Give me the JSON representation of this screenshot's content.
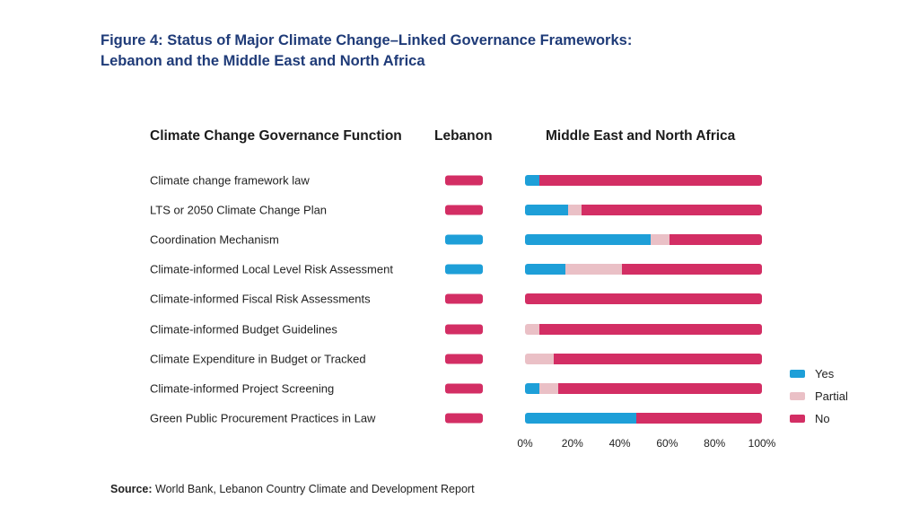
{
  "figure": {
    "title_line1": "Figure 4: Status of Major Climate Change–Linked Governance Frameworks:",
    "title_line2": "Lebanon and the Middle East and North Africa"
  },
  "source": {
    "label": "Source:",
    "text": " World Bank, Lebanon Country Climate and Development Report"
  },
  "chart_data": {
    "type": "bar",
    "orientation": "horizontal",
    "stacked": true,
    "title": "Status of Major Climate Change–Linked Governance Frameworks: Lebanon and the Middle East and North Africa",
    "column_headers": {
      "function": "Climate Change Governance Function",
      "lebanon": "Lebanon",
      "mena": "Middle East and North Africa"
    },
    "categories": [
      "Climate change framework law",
      "LTS or 2050 Climate Change Plan",
      "Coordination Mechanism",
      "Climate-informed Local Level Risk Assessment",
      "Climate-informed Fiscal Risk Assessments",
      "Climate-informed Budget Guidelines",
      "Climate Expenditure in Budget or Tracked",
      "Climate-informed Project Screening",
      "Green Public Procurement Practices in Law"
    ],
    "lebanon_status": [
      "No",
      "No",
      "Yes",
      "Yes",
      "No",
      "No",
      "No",
      "No",
      "No"
    ],
    "series": [
      {
        "name": "Yes",
        "color": "#1e9fd8",
        "values": [
          6,
          18,
          53,
          17,
          0,
          0,
          0,
          6,
          47
        ]
      },
      {
        "name": "Partial",
        "color": "#eac0c6",
        "values": [
          0,
          6,
          8,
          24,
          0,
          6,
          12,
          8,
          0
        ]
      },
      {
        "name": "No",
        "color": "#d32e64",
        "values": [
          94,
          76,
          39,
          59,
          100,
          94,
          88,
          86,
          53
        ]
      }
    ],
    "x_ticks": [
      "0%",
      "20%",
      "40%",
      "60%",
      "80%",
      "100%"
    ],
    "xlim": [
      0,
      100
    ],
    "legend": [
      "Yes",
      "Partial",
      "No"
    ],
    "legend_position": "bottom-right"
  }
}
